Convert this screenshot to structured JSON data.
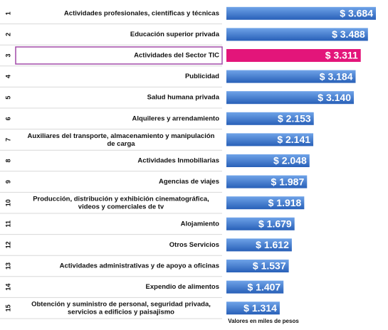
{
  "chart_data": {
    "type": "bar",
    "orientation": "horizontal",
    "ranks": [
      "1",
      "2",
      "3",
      "4",
      "5",
      "6",
      "7",
      "8",
      "9",
      "10",
      "11",
      "12",
      "13",
      "14",
      "15"
    ],
    "categories": [
      "Actividades profesionales, científicas y técnicas",
      "Educación superior privada",
      "Actividades del Sector TIC",
      "Publicidad",
      "Salud humana privada",
      "Alquileres y arrendamiento",
      "Auxiliares del transporte, almacenamiento y manipulación\nde carga",
      "Actividades Inmobiliarias",
      "Agencias de viajes",
      "Producción, distribución y exhibición cinematográfica,\nvideos y comerciales de tv",
      "Alojamiento",
      "Otros Servicios",
      "Actividades administrativas y de apoyo a oficinas",
      "Expendio de alimentos",
      "Obtención y suministro de personal, seguridad privada,\nservicios a edificios y paisajismo"
    ],
    "values": [
      3684,
      3488,
      3311,
      3184,
      3140,
      2153,
      2141,
      2048,
      1987,
      1918,
      1679,
      1612,
      1537,
      1407,
      1314
    ],
    "value_labels": [
      "$ 3.684",
      "$ 3.488",
      "$ 3.311",
      "$ 3.184",
      "$ 3.140",
      "$ 2.153",
      "$ 2.141",
      "$ 2.048",
      "$ 1.987",
      "$ 1.918",
      "$ 1.679",
      "$ 1.612",
      "$ 1.537",
      "$ 1.407",
      "$ 1.314"
    ],
    "color": "#3b78d0",
    "highlight": {
      "index": 2,
      "color": "#e3157a",
      "border": "#a24aa8"
    },
    "note": "Valores en miles de pesos"
  }
}
